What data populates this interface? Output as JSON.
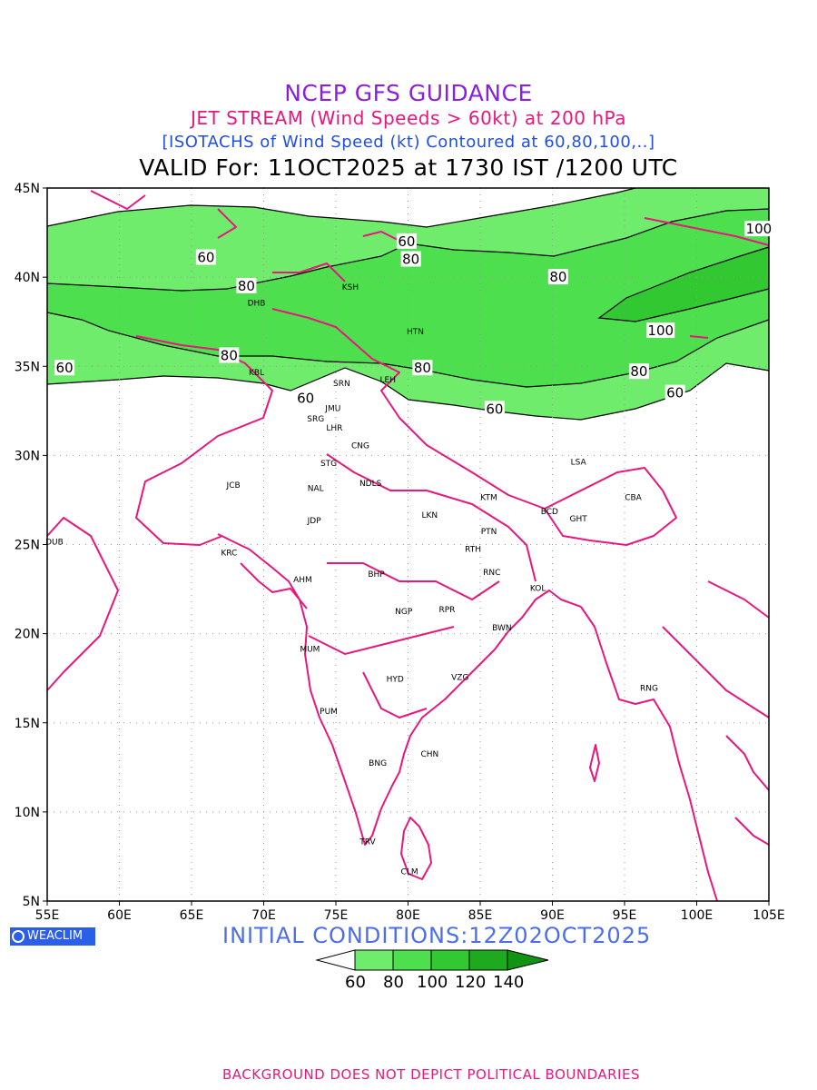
{
  "header": {
    "title": "NCEP GFS GUIDANCE",
    "subtitle": "JET STREAM (Wind Speeds > 60kt) at 200 hPa",
    "description": "[ISOTACHS of Wind Speed (kt) Contoured at 60,80,100,..]",
    "valid": "VALID For: 11OCT2025 at 1730 IST /1200 UTC"
  },
  "map": {
    "lon_ticks": [
      "55E",
      "60E",
      "65E",
      "70E",
      "75E",
      "80E",
      "85E",
      "90E",
      "95E",
      "100E",
      "105E"
    ],
    "lat_ticks": [
      "45N",
      "40N",
      "35N",
      "30N",
      "25N",
      "20N",
      "15N",
      "10N",
      "5N"
    ],
    "lon_range": [
      55,
      105
    ],
    "lat_range": [
      5,
      45
    ],
    "grid": true,
    "colors": {
      "band_60_80": "#70ec6c",
      "band_80_100": "#4ddf4d",
      "band_100_120": "#32c832",
      "band_120_140": "#1eaa1e",
      "band_140_plus": "#119411",
      "coast": "#e8177e",
      "grid": "#999999"
    },
    "contour_labels": [
      {
        "text": "60",
        "lon": 79.9,
        "lat": 42.0
      },
      {
        "text": "60",
        "lon": 66.0,
        "lat": 41.1
      },
      {
        "text": "80",
        "lon": 80.2,
        "lat": 41.0
      },
      {
        "text": "80",
        "lon": 68.8,
        "lat": 39.5
      },
      {
        "text": "80",
        "lon": 90.4,
        "lat": 40.0
      },
      {
        "text": "100",
        "lon": 104.3,
        "lat": 42.7
      },
      {
        "text": "80",
        "lon": 67.6,
        "lat": 35.6
      },
      {
        "text": "60",
        "lon": 56.2,
        "lat": 34.9
      },
      {
        "text": "80",
        "lon": 81.0,
        "lat": 34.9
      },
      {
        "text": "60",
        "lon": 72.9,
        "lat": 33.2
      },
      {
        "text": "60",
        "lon": 86.0,
        "lat": 32.6
      },
      {
        "text": "100",
        "lon": 97.5,
        "lat": 37.0
      },
      {
        "text": "80",
        "lon": 96.0,
        "lat": 34.7
      },
      {
        "text": "60",
        "lon": 98.5,
        "lat": 33.5
      }
    ],
    "stations": [
      {
        "code": "KSH",
        "lon": 76.0,
        "lat": 39.5
      },
      {
        "code": "DHB",
        "lon": 69.5,
        "lat": 38.6
      },
      {
        "code": "HTN",
        "lon": 80.5,
        "lat": 37.0
      },
      {
        "code": "KBL",
        "lon": 69.5,
        "lat": 34.7
      },
      {
        "code": "SRN",
        "lon": 75.4,
        "lat": 34.1
      },
      {
        "code": "LEH",
        "lon": 78.6,
        "lat": 34.3
      },
      {
        "code": "JMU",
        "lon": 74.8,
        "lat": 32.7
      },
      {
        "code": "SRG",
        "lon": 73.6,
        "lat": 32.1
      },
      {
        "code": "LHR",
        "lon": 74.9,
        "lat": 31.6
      },
      {
        "code": "CNG",
        "lon": 76.7,
        "lat": 30.6
      },
      {
        "code": "STG",
        "lon": 74.5,
        "lat": 29.6
      },
      {
        "code": "JCB",
        "lon": 67.9,
        "lat": 28.4
      },
      {
        "code": "NAL",
        "lon": 73.6,
        "lat": 28.2
      },
      {
        "code": "NDLS",
        "lon": 77.4,
        "lat": 28.5
      },
      {
        "code": "LSA",
        "lon": 91.8,
        "lat": 29.7
      },
      {
        "code": "KTM",
        "lon": 85.6,
        "lat": 27.7
      },
      {
        "code": "BCD",
        "lon": 89.8,
        "lat": 26.9
      },
      {
        "code": "CBA",
        "lon": 95.6,
        "lat": 27.7
      },
      {
        "code": "GHT",
        "lon": 91.8,
        "lat": 26.5
      },
      {
        "code": "JDP",
        "lon": 73.5,
        "lat": 26.4
      },
      {
        "code": "LKN",
        "lon": 81.5,
        "lat": 26.7
      },
      {
        "code": "PTN",
        "lon": 85.6,
        "lat": 25.8
      },
      {
        "code": "DUB",
        "lon": 55.5,
        "lat": 25.2
      },
      {
        "code": "KRC",
        "lon": 67.6,
        "lat": 24.6
      },
      {
        "code": "RTH",
        "lon": 84.5,
        "lat": 24.8
      },
      {
        "code": "AHM",
        "lon": 72.7,
        "lat": 23.1
      },
      {
        "code": "BHP",
        "lon": 77.8,
        "lat": 23.4
      },
      {
        "code": "RNC",
        "lon": 85.8,
        "lat": 23.5
      },
      {
        "code": "KOL",
        "lon": 89.0,
        "lat": 22.6
      },
      {
        "code": "NGP",
        "lon": 79.7,
        "lat": 21.3
      },
      {
        "code": "RPR",
        "lon": 82.7,
        "lat": 21.4
      },
      {
        "code": "BWN",
        "lon": 86.5,
        "lat": 20.4
      },
      {
        "code": "MUM",
        "lon": 73.2,
        "lat": 19.2
      },
      {
        "code": "HYD",
        "lon": 79.1,
        "lat": 17.5
      },
      {
        "code": "VZG",
        "lon": 83.6,
        "lat": 17.6
      },
      {
        "code": "RNG",
        "lon": 96.7,
        "lat": 17.0
      },
      {
        "code": "PUM",
        "lon": 74.5,
        "lat": 15.7
      },
      {
        "code": "CHN",
        "lon": 81.5,
        "lat": 13.3
      },
      {
        "code": "BNG",
        "lon": 77.9,
        "lat": 12.8
      },
      {
        "code": "TRV",
        "lon": 77.2,
        "lat": 8.4
      },
      {
        "code": "CLM",
        "lon": 80.1,
        "lat": 6.7
      }
    ]
  },
  "footer": {
    "logo": "WEACLIM",
    "initial": "INITIAL  CONDITIONS:12Z02OCT2025",
    "colorbar_ticks": [
      "60",
      "80",
      "100",
      "120",
      "140"
    ],
    "disclaimer": "BACKGROUND DOES NOT DEPICT POLITICAL BOUNDARIES"
  }
}
